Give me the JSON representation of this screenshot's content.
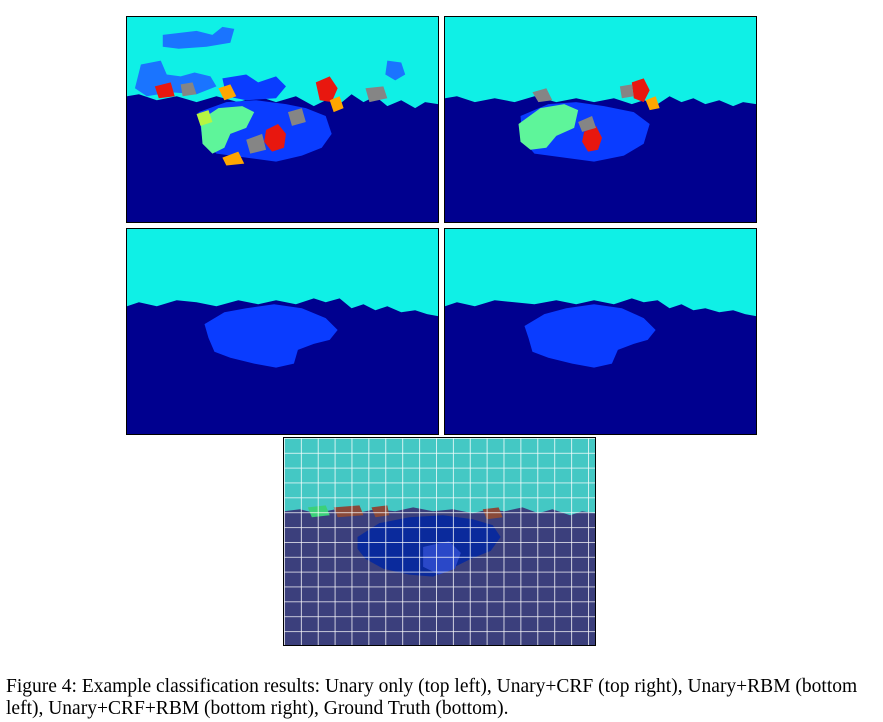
{
  "figure": {
    "caption": "Figure 4: Example classification results: Unary only (top left), Unary+CRF (top right), Unary+RBM (bottom left), Unary+CRF+RBM (bottom right), Ground Truth (bottom)."
  },
  "colors": {
    "sky": "#0ff0e6",
    "ground": "#00008f",
    "object": "#0a3cff",
    "light_object": "#5ef59a",
    "gray_label": "#858585",
    "red_label": "#e8170f",
    "orange_label": "#ffa600",
    "gt_sky": "#44c8c4",
    "gt_ground": "#3b3f7c",
    "gt_object": "#0a2a9c",
    "gt_brown": "#8a4a3a",
    "grid_line": "#ffffff"
  }
}
